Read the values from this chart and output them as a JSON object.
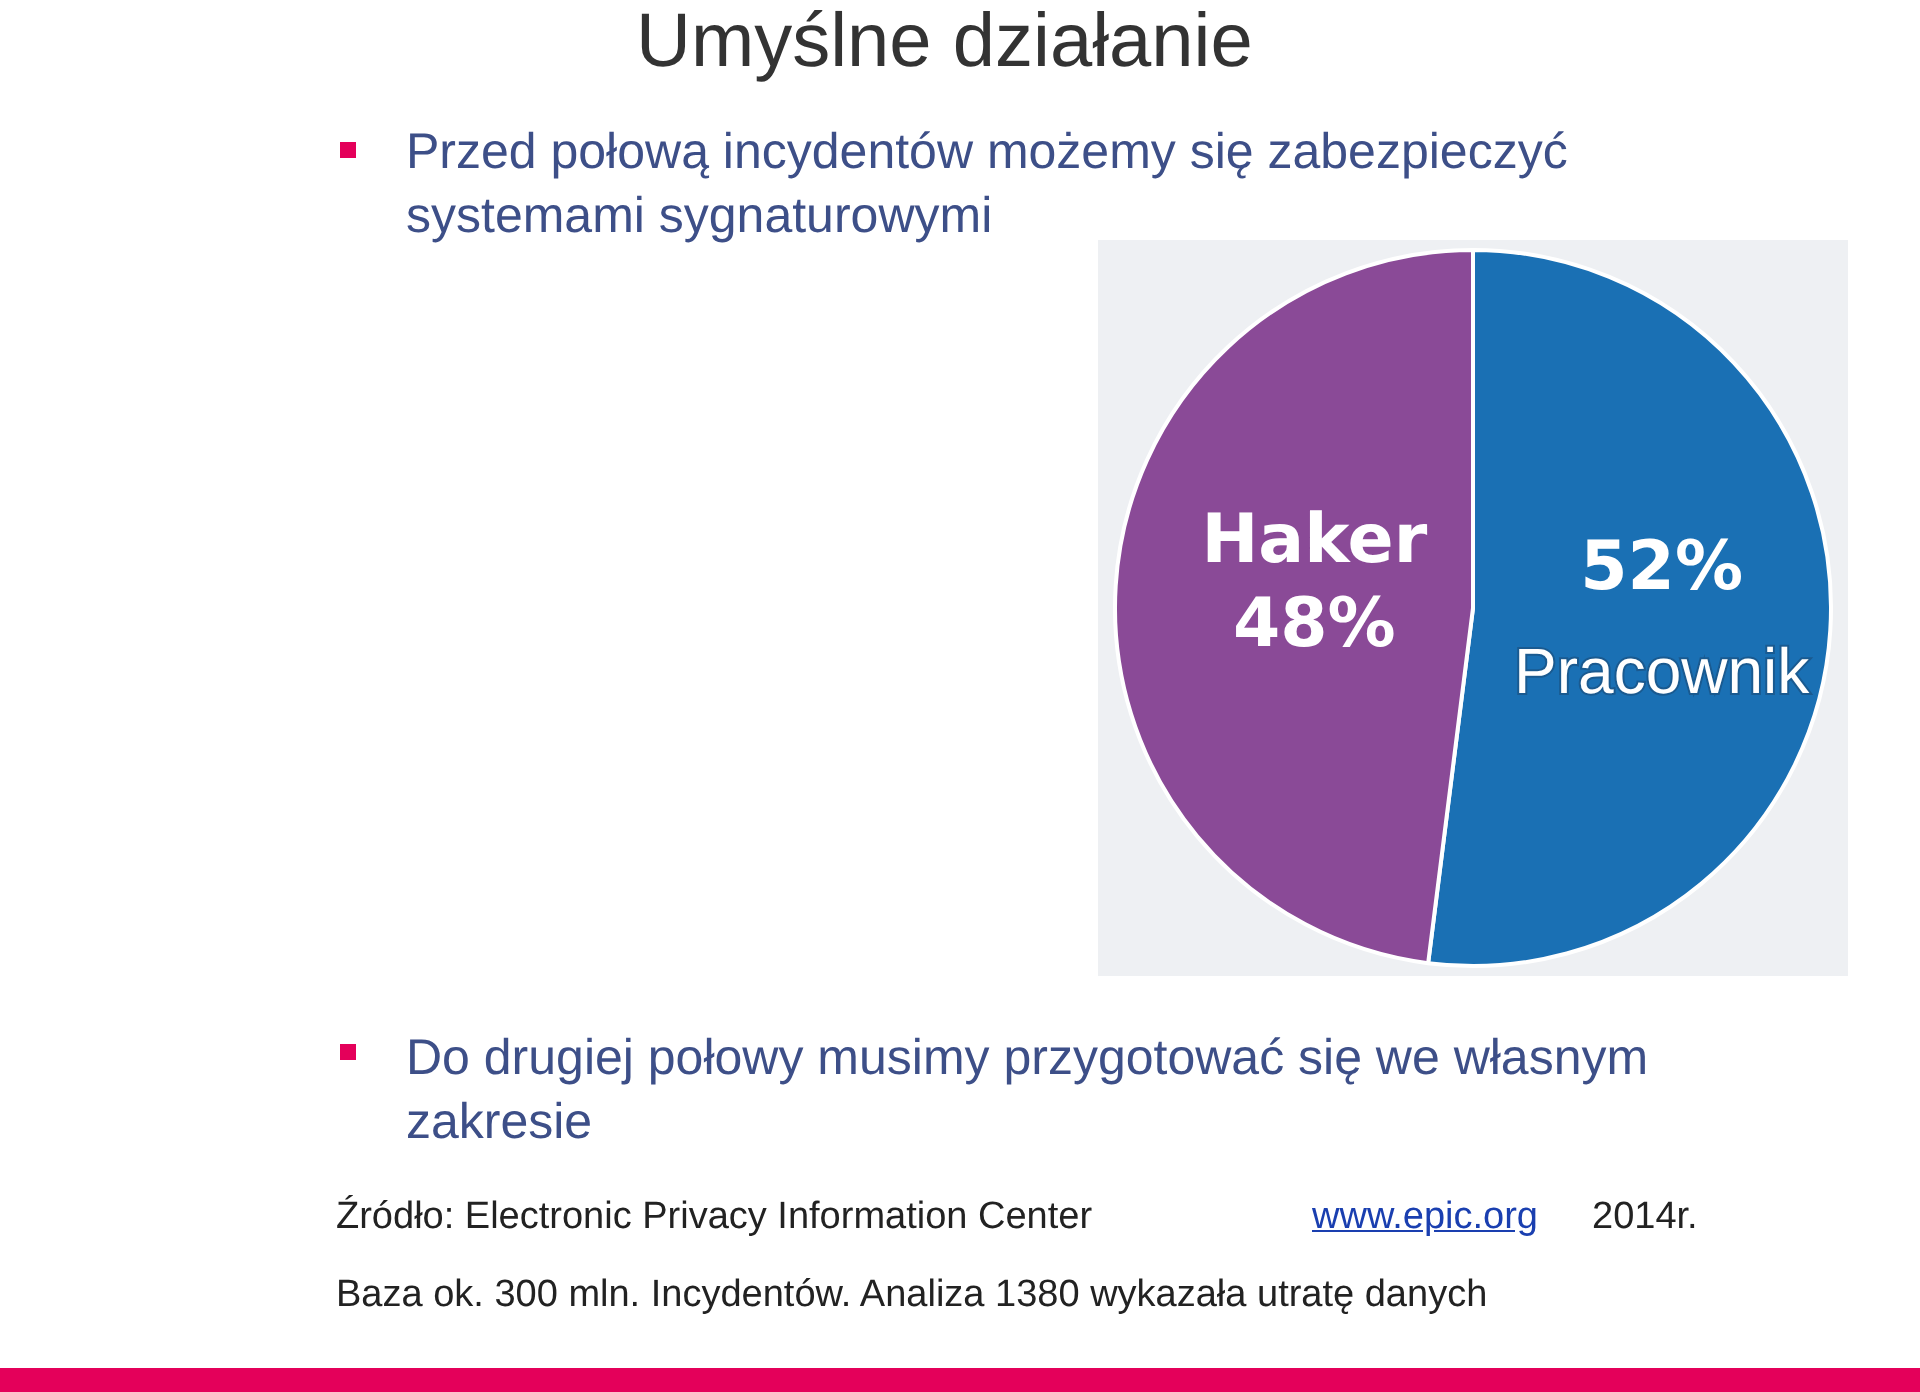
{
  "chart_data": {
    "type": "pie",
    "title": "Umyślne działanie",
    "categories": [
      "Pracownik",
      "Haker"
    ],
    "values": [
      52,
      48
    ],
    "colors": [
      "#1a70b4",
      "#8a4a97"
    ],
    "value_labels": [
      "52%",
      "48%"
    ],
    "legend": false,
    "annotations": [
      "Przed połową incydentów możemy się zabezpieczyć systemami sygnaturowymi",
      "Do drugiej połowy musimy przygotować się we własnym zakresie",
      "Źródło: Electronic Privacy Information Center",
      "www.epic.org",
      "2014r.",
      "Baza ok. 300 mln. Incydentów. Analiza 1380 wykazała utratę danych"
    ]
  }
}
